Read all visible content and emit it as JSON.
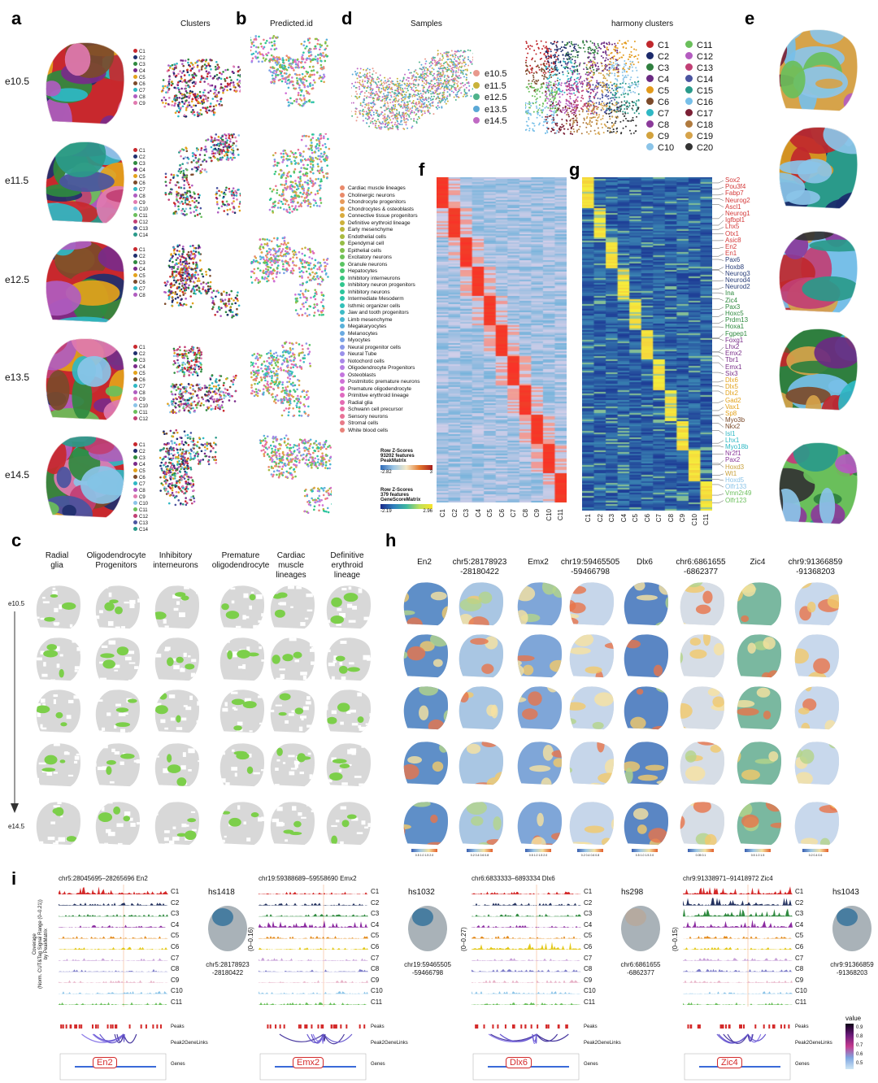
{
  "panels": {
    "a": {
      "label": "a",
      "title": "Clusters",
      "rows": [
        "e10.5",
        "e11.5",
        "e12.5",
        "e13.5",
        "e14.5"
      ]
    },
    "b": {
      "label": "b",
      "title": "Predicted.id"
    },
    "d": {
      "label": "d",
      "title_samples": "Samples",
      "title_harmony": "harmony clusters",
      "samples": [
        "e10.5",
        "e11.5",
        "e12.5",
        "e13.5",
        "e14.5"
      ],
      "sample_colors": [
        "#e8998d",
        "#c9b23a",
        "#4fb38c",
        "#5aa8d6",
        "#c06ac4"
      ],
      "harmony": [
        "C1",
        "C2",
        "C3",
        "C4",
        "C5",
        "C6",
        "C7",
        "C8",
        "C9",
        "C10",
        "C11",
        "C12",
        "C13",
        "C14",
        "C15",
        "C16",
        "C17",
        "C18",
        "C19",
        "C20"
      ],
      "harmony_colors": [
        "#c0282d",
        "#1b2a6b",
        "#2f7f3f",
        "#6b2a82",
        "#e39a1b",
        "#7c4a2a",
        "#2fb8c4",
        "#8b3a9a",
        "#d2a23e",
        "#8bc4e8",
        "#6abf5b",
        "#b45cc0",
        "#c13f74",
        "#4a54a0",
        "#2a9a8a",
        "#77bfe8",
        "#7b2035",
        "#b07a3e",
        "#d6a34a",
        "#333333"
      ]
    },
    "e": {
      "label": "e"
    },
    "f": {
      "label": "f",
      "scale_title": "Row Z-Scores\n93202 features\nPeakMatrix",
      "scale_min": "-2.82",
      "scale_max": "3",
      "columns": [
        "C1",
        "C2",
        "C3",
        "C4",
        "C5",
        "C6",
        "C7",
        "C8",
        "C9",
        "C10",
        "C11"
      ]
    },
    "g": {
      "label": "g",
      "scale_title": "Row Z-Scores\n379 features\nGeneScoreMatrix",
      "scale_min": "-2.19",
      "scale_max": "2.96",
      "columns": [
        "C1",
        "C2",
        "C3",
        "C4",
        "C5",
        "C6",
        "C7",
        "C8",
        "C9",
        "C10",
        "C11"
      ],
      "genes": [
        "Sox2",
        "Pou3f4",
        "Fabp7",
        "Neurog2",
        "Ascl1",
        "Neurog1",
        "Igfbpl1",
        "Lhx5",
        "Otx1",
        "Asic8",
        "En2",
        "En1",
        "Pax6",
        "Hoxb8",
        "Neurog3",
        "Neurod4",
        "Neurod2",
        "Ina",
        "Zic4",
        "Pax3",
        "Hoxc5",
        "Prdm13",
        "Hoxa1",
        "Fgpep1",
        "Foxg1",
        "Lhx2",
        "Emx2",
        "Tbr1",
        "Emx1",
        "Six3",
        "Dlx6",
        "Dlx5",
        "Dlx2",
        "Gad2",
        "Vax1",
        "Sp8",
        "Myo3b",
        "Nkx2",
        "Isl1",
        "Lhx1",
        "Myo18b",
        "Nr2f1",
        "Pax2",
        "Hoxd3",
        "Wt1",
        "Hoxd5",
        "Olfr133",
        "Vmn2r49",
        "Olfr123"
      ],
      "gene_colors": [
        "#d43a3a",
        "#d43a3a",
        "#d43a3a",
        "#d43a3a",
        "#d43a3a",
        "#d43a3a",
        "#d43a3a",
        "#d43a3a",
        "#d43a3a",
        "#d43a3a",
        "#d43a3a",
        "#d43a3a",
        "#2a3f7a",
        "#2a3f7a",
        "#2a3f7a",
        "#2a3f7a",
        "#2a3f7a",
        "#2f8a3f",
        "#2f8a3f",
        "#2f8a3f",
        "#2f8a3f",
        "#2f8a3f",
        "#2f8a3f",
        "#2f8a3f",
        "#7a2f8a",
        "#7a2f8a",
        "#7a2f8a",
        "#7a2f8a",
        "#7a2f8a",
        "#7a2f8a",
        "#e3a21b",
        "#e3a21b",
        "#e3a21b",
        "#e3a21b",
        "#e3a21b",
        "#e3a21b",
        "#7a4a2a",
        "#7a4a2a",
        "#2fb8c4",
        "#2fb8c4",
        "#2fb8c4",
        "#8b3a9a",
        "#8b3a9a",
        "#c9a23e",
        "#c9a23e",
        "#8bc4e8",
        "#8bc4e8",
        "#6abf5b",
        "#6abf5b"
      ]
    },
    "c": {
      "label": "c",
      "columns": [
        "Radial\nglia",
        "Oligodendrocyte\nProgenitors",
        "Inhibitory\ninterneurons",
        "Premature\noligodendrocyte",
        "Cardiac\nmuscle\nlineages",
        "Definitive\nerythroid\nlineage"
      ],
      "time_start": "e10.5",
      "time_end": "e14.5"
    },
    "h": {
      "label": "h",
      "columns": [
        "En2",
        "chr5:28178923\n-28180422",
        "Emx2",
        "chr19:59465505\n-59466798",
        "Dlx6",
        "chr6:6861655\n-6862377",
        "Zic4",
        "chr9:91366859\n-91368203"
      ]
    },
    "i": {
      "label": "i",
      "tracks": [
        {
          "region": "chr5:28045695–28265696 En2",
          "vista": "hs1418",
          "coord": "chr5:28178923\n-28180422",
          "gene": "En2",
          "yrange": ""
        },
        {
          "region": "chr19:59388689–59558690 Emx2",
          "vista": "hs1032",
          "coord": "chr19:59465505\n-59466798",
          "gene": "Emx2",
          "yrange": "(0–0.16)"
        },
        {
          "region": "chr6:6833333–6893334 Dlx6",
          "vista": "hs298",
          "coord": "chr6:6861655\n-6862377",
          "gene": "Dlx6",
          "yrange": "(0–0.27)"
        },
        {
          "region": "chr9:91338971–91418972 Zic4",
          "vista": "hs1043",
          "coord": "chr9:91366859\n-91368203",
          "gene": "Zic4",
          "yrange": "(0–0.15)"
        }
      ],
      "clusters": [
        "C1",
        "C2",
        "C3",
        "C4",
        "C5",
        "C6",
        "C7",
        "C8",
        "C9",
        "C10",
        "C11"
      ],
      "cluster_colors": [
        "#d42a2a",
        "#22305e",
        "#2f8a3f",
        "#8b2aa0",
        "#e38a1b",
        "#e3c91b",
        "#c8a0d8",
        "#7b7bc8",
        "#e8b4c8",
        "#8bc4e8",
        "#6abf5b"
      ],
      "yaxis": "Coverage\n(Norm. CUT&Tag Signal Range (0–0.21))\nby PeakMatrix",
      "peaks_label": "Peaks",
      "links_label": "Peak2GeneLinks",
      "genes_label": "Genes",
      "colorbar_title": "value",
      "colorbar_ticks": [
        "0.9",
        "0.8",
        "0.7",
        "0.6",
        "0.5"
      ]
    }
  },
  "celltypes": [
    "Cardiac muscle lineages",
    "Cholinergic neurons",
    "Chondrocyte progenitors",
    "Chondrocytes & osteoblasts",
    "Connective tissue progenitors",
    "Definitive erythroid lineage",
    "Early mesenchyme",
    "Endothelial cells",
    "Ependymal cell",
    "Epithelial cells",
    "Excitatory neurons",
    "Granule neurons",
    "Hepatocytes",
    "Inhibitory interneurons",
    "Inhibitory neuron progenitors",
    "Inhibitory neurons",
    "Intermediate Mesoderm",
    "Isthmic organizer cells",
    "Jaw and tooth progenitors",
    "Limb mesenchyme",
    "Megakaryocytes",
    "Melanocytes",
    "Myocytes",
    "Neural progenitor cells",
    "Neural Tube",
    "Notochord cells",
    "Oligodendrocyte Progenitors",
    "Osteoblasts",
    "Postmitotic premature neurons",
    "Premature oligodendrocyte",
    "Primitive erythroid lineage",
    "Radial glia",
    "Schwann cell precursor",
    "Sensory neurons",
    "Stromal cells",
    "White blood cells"
  ],
  "celltype_colors": [
    "#e9896a",
    "#e98a6a",
    "#e79a5a",
    "#e2a24a",
    "#d8ab3e",
    "#cdb13a",
    "#bcb63c",
    "#a9ba40",
    "#96bd46",
    "#82c04e",
    "#6ec258",
    "#5ac463",
    "#48c570",
    "#3ac67f",
    "#30c68e",
    "#2cc59c",
    "#2dc3ab",
    "#33c0b9",
    "#3ebcc6",
    "#4bb7d1",
    "#5ab1da",
    "#6aaae1",
    "#7aa2e6",
    "#8a99e9",
    "#9a90ea",
    "#a987e8",
    "#b77ee4",
    "#c476de",
    "#cf70d6",
    "#d86ccc",
    "#df6ac0",
    "#e46ab2",
    "#e76da4",
    "#e87296",
    "#e87a88",
    "#e8827a"
  ],
  "cluster_palette_a": [
    "#c8282d",
    "#1f2f6e",
    "#2f8a3f",
    "#7a2a8a",
    "#e3a21b",
    "#7c4a2a",
    "#2fb8c4",
    "#b05cc0",
    "#e07ab0",
    "#8bc4e8",
    "#6abf5b",
    "#c13f74",
    "#4a54a0",
    "#2a9a8a"
  ],
  "umap_counts_a": [
    9,
    14,
    8,
    12,
    14
  ],
  "h_scale_labels": [
    "0.5 1.0 1.5 2.0",
    "0.2 0.4 0.6 0.8",
    "0.5 1.0 1.5 2.0",
    "0.2 0.4 0.6 0.8",
    "0.5 1.0 1.5 2.0",
    "0.05 0.1",
    "0.5 1.0 1.5",
    "0.2 0.4 0.6"
  ]
}
